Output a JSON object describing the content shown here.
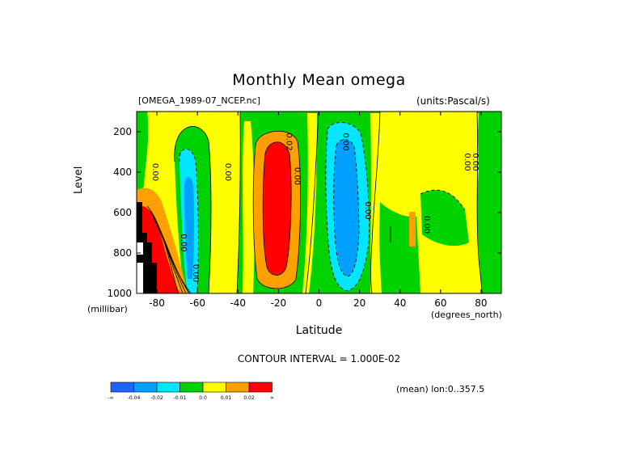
{
  "title": "Monthly Mean omega",
  "dataset_label": "[OMEGA_1989-07_NCEP.nc]",
  "units_label": "(units:Pascal/s)",
  "contour_interval": "CONTOUR INTERVAL = 1.000E-02",
  "mean_info": "(mean) lon:0..357.5",
  "colors": {
    "neg_inf": "#1e64ff",
    "neg_004": "#00a0ff",
    "neg_002": "#00e6ff",
    "neg_001": "#00d200",
    "zero": "#ffff00",
    "pos_001": "#ffa000",
    "pos_002": "#ff0000",
    "missing": "#000000"
  },
  "chart_data": {
    "type": "heatmap",
    "title": "Monthly Mean omega",
    "xlabel": "Latitude",
    "ylabel": "Level",
    "xunits": "(degrees_north)",
    "yunits": "(millibar)",
    "xlim": [
      -90,
      90
    ],
    "ylim": [
      1000,
      100
    ],
    "x_ticks": [
      -80,
      -60,
      -40,
      -20,
      0,
      20,
      40,
      60,
      80
    ],
    "x_tick_labels": [
      "-80",
      "-60",
      "-40",
      "-20",
      "0",
      "20",
      "40",
      "60",
      "80"
    ],
    "y_ticks": [
      200,
      400,
      600,
      800,
      1000
    ],
    "y_tick_labels": [
      "200",
      "400",
      "600",
      "800",
      "1000"
    ],
    "contour_labels": [
      {
        "text": "0.00",
        "lat": -82,
        "level": 400
      },
      {
        "text": "0.00",
        "lat": -68,
        "level": 750
      },
      {
        "text": "0.00",
        "lat": -62,
        "level": 900
      },
      {
        "text": "0.00",
        "lat": -46,
        "level": 400
      },
      {
        "text": "0.02",
        "lat": -16,
        "level": 250
      },
      {
        "text": "0.00",
        "lat": -12,
        "level": 420
      },
      {
        "text": "0.00",
        "lat": 12,
        "level": 250
      },
      {
        "text": "0.00",
        "lat": 23,
        "level": 590
      },
      {
        "text": "0.00",
        "lat": 52,
        "level": 660
      },
      {
        "text": "0.00",
        "lat": 72,
        "level": 350
      },
      {
        "text": "0.00",
        "lat": 76,
        "level": 350
      }
    ],
    "colorbar": {
      "colors": [
        "#1e64ff",
        "#00a0ff",
        "#00e6ff",
        "#00d200",
        "#ffff00",
        "#ffa000",
        "#ff0000"
      ],
      "labels": [
        "-∞",
        "-0.04",
        "-0.02",
        "-0.01",
        "0.0",
        "0.01",
        "0.02",
        "∞"
      ]
    }
  }
}
